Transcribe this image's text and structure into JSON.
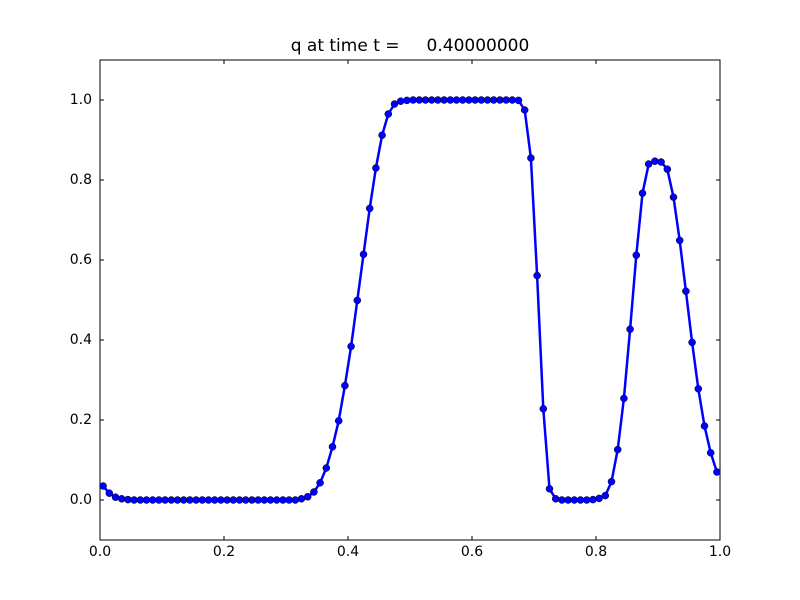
{
  "chart_data": {
    "type": "line",
    "title": "q at time t =     0.40000000",
    "x": [
      0.005,
      0.015,
      0.025,
      0.035,
      0.045,
      0.055,
      0.065,
      0.075,
      0.085,
      0.095,
      0.105,
      0.115,
      0.125,
      0.135,
      0.145,
      0.155,
      0.165,
      0.175,
      0.185,
      0.195,
      0.205,
      0.215,
      0.225,
      0.235,
      0.245,
      0.255,
      0.265,
      0.275,
      0.285,
      0.295,
      0.305,
      0.315,
      0.325,
      0.335,
      0.345,
      0.355,
      0.365,
      0.375,
      0.385,
      0.395,
      0.405,
      0.415,
      0.425,
      0.435,
      0.445,
      0.455,
      0.465,
      0.475,
      0.485,
      0.495,
      0.505,
      0.515,
      0.525,
      0.535,
      0.545,
      0.555,
      0.565,
      0.575,
      0.585,
      0.595,
      0.605,
      0.615,
      0.625,
      0.635,
      0.645,
      0.655,
      0.665,
      0.675,
      0.685,
      0.695,
      0.705,
      0.715,
      0.725,
      0.735,
      0.745,
      0.755,
      0.765,
      0.775,
      0.785,
      0.795,
      0.805,
      0.815,
      0.825,
      0.835,
      0.845,
      0.855,
      0.865,
      0.875,
      0.885,
      0.895,
      0.905,
      0.915,
      0.925,
      0.935,
      0.945,
      0.955,
      0.965,
      0.975,
      0.985,
      0.995
    ],
    "values": [
      0.035,
      0.017,
      0.007,
      0.003,
      0.001,
      0,
      0,
      0,
      0,
      0,
      0,
      0,
      0,
      0,
      0,
      0,
      0,
      0,
      0,
      0,
      0,
      0,
      0,
      0,
      0,
      0,
      0,
      0,
      0,
      0,
      0,
      0,
      0.003,
      0.008,
      0.02,
      0.043,
      0.08,
      0.133,
      0.198,
      0.286,
      0.384,
      0.499,
      0.614,
      0.729,
      0.83,
      0.912,
      0.965,
      0.99,
      0.997,
      0.999,
      1,
      1,
      1,
      1,
      1,
      1,
      1,
      1,
      1,
      1,
      1,
      1,
      1,
      1,
      1,
      1,
      1,
      0.999,
      0.975,
      0.855,
      0.561,
      0.228,
      0.028,
      0.003,
      0,
      0,
      0,
      0,
      0,
      0.001,
      0.004,
      0.011,
      0.046,
      0.126,
      0.254,
      0.427,
      0.612,
      0.767,
      0.84,
      0.847,
      0.845,
      0.827,
      0.757,
      0.649,
      0.522,
      0.394,
      0.278,
      0.185,
      0.118,
      0.07
    ],
    "color": "#0000ff",
    "xlim": [
      0,
      1
    ],
    "xticks": [
      {
        "value": 0,
        "label": "0.0"
      },
      0.2,
      0.4,
      0.6,
      0.8,
      {
        "value": 1,
        "label": "1.0"
      }
    ],
    "ylim": [
      -0.1,
      1.1
    ],
    "yticks": [
      {
        "value": 0,
        "label": "0.0"
      },
      0.2,
      0.4,
      0.6,
      0.8,
      {
        "value": 1,
        "label": "1.0"
      }
    ],
    "grid": false
  }
}
